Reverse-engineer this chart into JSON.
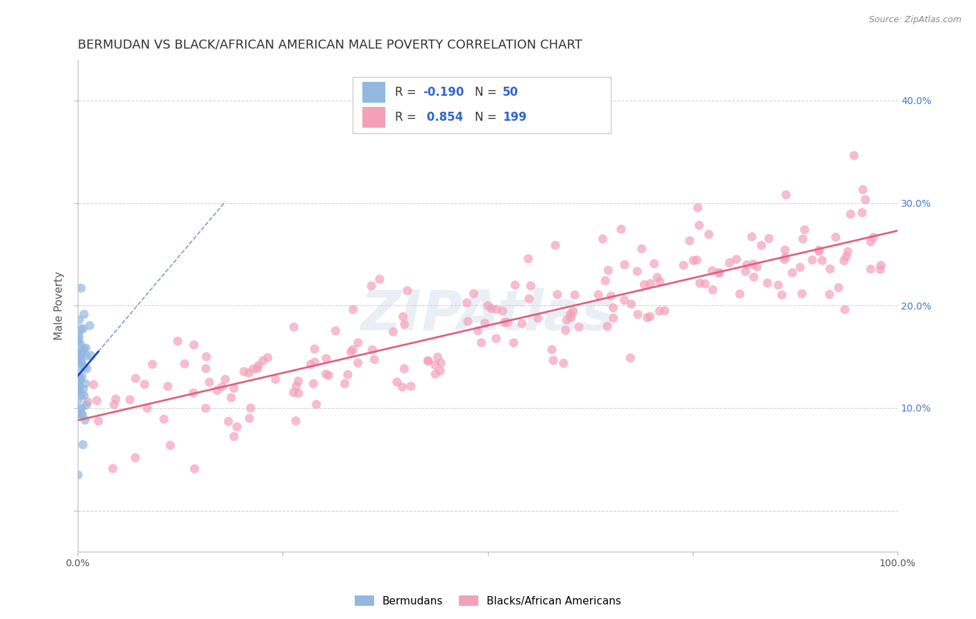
{
  "title": "BERMUDAN VS BLACK/AFRICAN AMERICAN MALE POVERTY CORRELATION CHART",
  "source": "Source: ZipAtlas.com",
  "ylabel": "Male Poverty",
  "xlim": [
    0,
    1.0
  ],
  "ylim": [
    -0.04,
    0.44
  ],
  "blue_R": -0.19,
  "blue_N": 50,
  "pink_R": 0.854,
  "pink_N": 199,
  "blue_color": "#92b8e0",
  "pink_color": "#f4a0b8",
  "blue_line_color": "#1a44bb",
  "pink_line_color": "#e06080",
  "background_color": "#ffffff",
  "grid_color": "#cccccc",
  "title_color": "#333333",
  "watermark": "ZIPAtlas",
  "watermark_color": "#ccd8e8",
  "title_fontsize": 13,
  "axis_label_fontsize": 11,
  "tick_fontsize": 10,
  "legend_fontsize": 12,
  "legend_value_color": "#3366cc",
  "legend_label_color": "#333333",
  "right_tick_color": "#4477cc"
}
